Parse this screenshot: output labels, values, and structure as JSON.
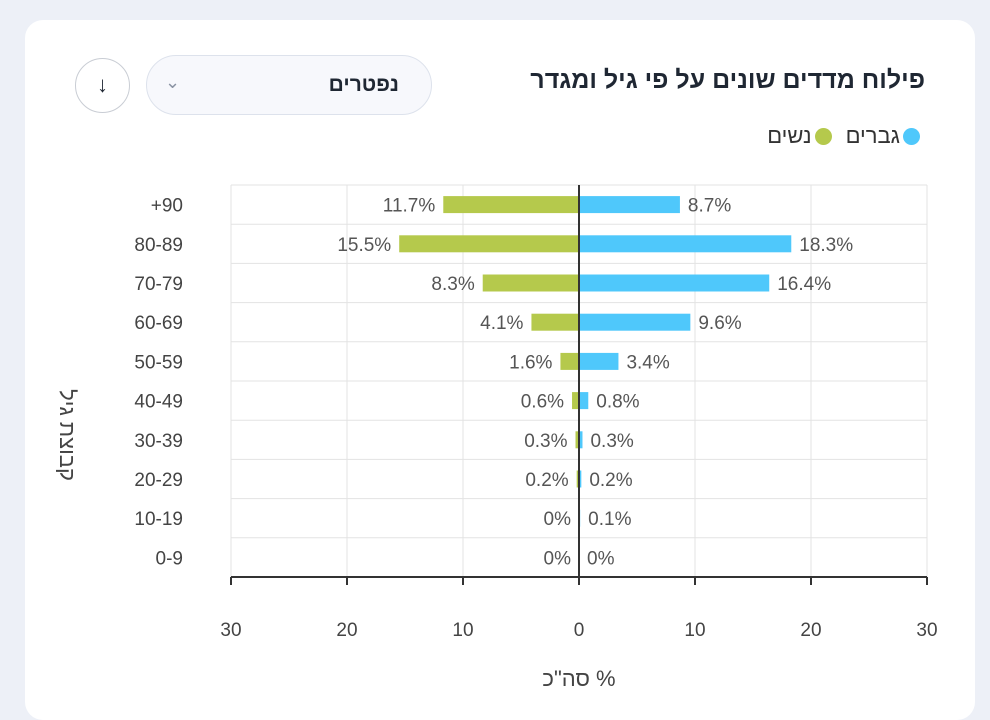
{
  "header": {
    "title": "פילוח מדדים שונים על פי גיל ומגדר",
    "select_value": "נפטרים",
    "download_icon": "arrow-down-icon",
    "chevron_icon": "chevron-down-icon"
  },
  "chart_data": {
    "type": "bar",
    "orientation": "horizontal-diverging",
    "title": "פילוח מדדים שונים על פי גיל ומגדר",
    "categories": [
      "+90",
      "80-89",
      "70-79",
      "60-69",
      "50-59",
      "40-49",
      "30-39",
      "20-29",
      "10-19",
      "0-9"
    ],
    "series": [
      {
        "name": "גברים",
        "color": "#4fc8fb",
        "values": [
          8.7,
          18.3,
          16.4,
          9.6,
          3.4,
          0.8,
          0.3,
          0.2,
          0.1,
          0
        ],
        "labels": [
          "8.7%",
          "18.3%",
          "16.4%",
          "9.6%",
          "3.4%",
          "0.8%",
          "0.3%",
          "0.2%",
          "0.1%",
          "0%"
        ]
      },
      {
        "name": "נשים",
        "color": "#b5c94c",
        "values": [
          11.7,
          15.5,
          8.3,
          4.1,
          1.6,
          0.6,
          0.3,
          0.2,
          0,
          0
        ],
        "labels": [
          "11.7%",
          "15.5%",
          "8.3%",
          "4.1%",
          "1.6%",
          "0.6%",
          "0.3%",
          "0.2%",
          "0%",
          "0%"
        ]
      }
    ],
    "xlabel": "% סה\"כ",
    "ylabel": "קבוצת גיל",
    "xlim": [
      -30,
      30
    ],
    "xticks": [
      -30,
      -20,
      -10,
      0,
      10,
      20,
      30
    ],
    "xtick_labels": [
      "30",
      "20",
      "10",
      "0",
      "10",
      "20",
      "30"
    ],
    "grid": true,
    "legend": "top-right"
  }
}
